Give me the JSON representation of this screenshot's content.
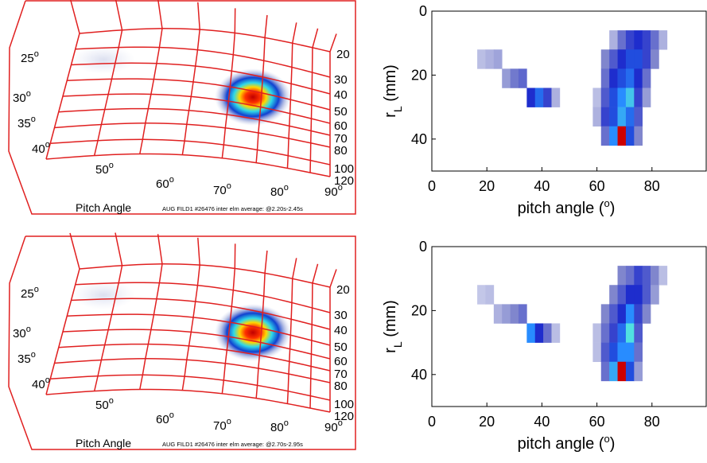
{
  "chart_data": [
    {
      "type": "image",
      "pitch_labels": [
        "25",
        "30",
        "35",
        "40",
        "50",
        "60",
        "70",
        "80",
        "90"
      ],
      "degree_mark": "o",
      "radius_labels": [
        "20",
        "30",
        "40",
        "50",
        "60",
        "70",
        "80",
        "100",
        "120"
      ],
      "xlabel": "Pitch Angle",
      "caption": "AUG FILD1 #26476 inter elm average: @2.20s-2.45s",
      "color": "#e02020"
    },
    {
      "type": "heatmap",
      "xlabel": [
        "pitch angle (",
        "o",
        ")"
      ],
      "ylabel": [
        "r",
        "L",
        " (mm)"
      ],
      "xlim": [
        0,
        100
      ],
      "ylim": [
        0,
        50
      ],
      "xticks": [
        0,
        20,
        40,
        60,
        80
      ],
      "yticks": [
        0,
        20,
        40
      ],
      "bin_size": [
        3,
        6
      ],
      "cells": [
        [
          18,
          15,
          0.12
        ],
        [
          21,
          15,
          0.15
        ],
        [
          24,
          15,
          0.18
        ],
        [
          27,
          21,
          0.2
        ],
        [
          30,
          21,
          0.28
        ],
        [
          33,
          21,
          0.32
        ],
        [
          36,
          27,
          0.45
        ],
        [
          39,
          27,
          0.55
        ],
        [
          42,
          27,
          0.4
        ],
        [
          45,
          27,
          0.15
        ],
        [
          60,
          27,
          0.12
        ],
        [
          60,
          33,
          0.15
        ],
        [
          63,
          15,
          0.25
        ],
        [
          63,
          21,
          0.3
        ],
        [
          63,
          27,
          0.35
        ],
        [
          63,
          33,
          0.4
        ],
        [
          63,
          39,
          0.3
        ],
        [
          66,
          9,
          0.15
        ],
        [
          66,
          15,
          0.35
        ],
        [
          66,
          21,
          0.45
        ],
        [
          66,
          27,
          0.5
        ],
        [
          66,
          33,
          0.5
        ],
        [
          66,
          39,
          0.6
        ],
        [
          69,
          9,
          0.3
        ],
        [
          69,
          15,
          0.45
        ],
        [
          69,
          21,
          0.5
        ],
        [
          69,
          27,
          0.6
        ],
        [
          69,
          33,
          0.65
        ],
        [
          69,
          39,
          1
        ],
        [
          72,
          9,
          0.4
        ],
        [
          72,
          15,
          0.5
        ],
        [
          72,
          21,
          0.55
        ],
        [
          72,
          27,
          0.7
        ],
        [
          72,
          33,
          0.55
        ],
        [
          72,
          39,
          0.5
        ],
        [
          75,
          9,
          0.45
        ],
        [
          75,
          15,
          0.5
        ],
        [
          75,
          21,
          0.45
        ],
        [
          75,
          27,
          0.4
        ],
        [
          75,
          33,
          0.35
        ],
        [
          75,
          39,
          0.25
        ],
        [
          78,
          9,
          0.4
        ],
        [
          78,
          15,
          0.4
        ],
        [
          78,
          21,
          0.3
        ],
        [
          78,
          27,
          0.2
        ],
        [
          81,
          9,
          0.3
        ],
        [
          81,
          15,
          0.25
        ],
        [
          84,
          9,
          0.15
        ]
      ]
    },
    {
      "type": "image",
      "pitch_labels": [
        "25",
        "30",
        "35",
        "40",
        "50",
        "60",
        "70",
        "80",
        "90"
      ],
      "degree_mark": "o",
      "radius_labels": [
        "20",
        "30",
        "40",
        "50",
        "60",
        "70",
        "80",
        "100",
        "120"
      ],
      "xlabel": "Pitch Angle",
      "caption": "AUG FILD1 #26476 inter elm average: @2.70s-2.95s",
      "color": "#e02020"
    },
    {
      "type": "heatmap",
      "xlabel": [
        "pitch angle (",
        "o",
        ")"
      ],
      "ylabel": [
        "r",
        "L",
        " (mm)"
      ],
      "xlim": [
        0,
        100
      ],
      "ylim": [
        0,
        50
      ],
      "xticks": [
        0,
        20,
        40,
        60,
        80
      ],
      "yticks": [
        0,
        20,
        40
      ],
      "bin_size": [
        3,
        6
      ],
      "cells": [
        [
          18,
          15,
          0.1
        ],
        [
          21,
          15,
          0.12
        ],
        [
          24,
          21,
          0.15
        ],
        [
          27,
          21,
          0.2
        ],
        [
          30,
          21,
          0.25
        ],
        [
          33,
          21,
          0.3
        ],
        [
          36,
          27,
          0.6
        ],
        [
          39,
          27,
          0.45
        ],
        [
          42,
          27,
          0.3
        ],
        [
          45,
          27,
          0.12
        ],
        [
          60,
          27,
          0.12
        ],
        [
          60,
          33,
          0.12
        ],
        [
          63,
          21,
          0.25
        ],
        [
          63,
          27,
          0.3
        ],
        [
          63,
          33,
          0.35
        ],
        [
          63,
          39,
          0.3
        ],
        [
          66,
          15,
          0.25
        ],
        [
          66,
          21,
          0.35
        ],
        [
          66,
          27,
          0.4
        ],
        [
          66,
          33,
          0.5
        ],
        [
          66,
          39,
          0.65
        ],
        [
          69,
          9,
          0.25
        ],
        [
          69,
          15,
          0.35
        ],
        [
          69,
          21,
          0.45
        ],
        [
          69,
          27,
          0.55
        ],
        [
          69,
          33,
          0.6
        ],
        [
          69,
          39,
          1
        ],
        [
          72,
          9,
          0.3
        ],
        [
          72,
          15,
          0.45
        ],
        [
          72,
          21,
          0.6
        ],
        [
          72,
          27,
          0.75
        ],
        [
          72,
          33,
          0.6
        ],
        [
          72,
          39,
          0.5
        ],
        [
          75,
          9,
          0.4
        ],
        [
          75,
          15,
          0.45
        ],
        [
          75,
          21,
          0.4
        ],
        [
          75,
          27,
          0.35
        ],
        [
          75,
          33,
          0.3
        ],
        [
          75,
          39,
          0.2
        ],
        [
          78,
          9,
          0.35
        ],
        [
          78,
          15,
          0.35
        ],
        [
          78,
          21,
          0.25
        ],
        [
          81,
          9,
          0.25
        ],
        [
          81,
          15,
          0.2
        ],
        [
          84,
          9,
          0.12
        ]
      ]
    }
  ]
}
